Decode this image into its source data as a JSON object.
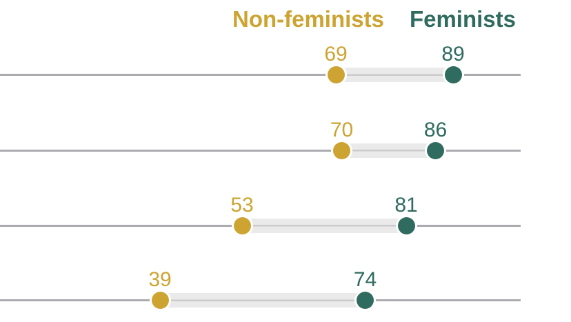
{
  "legend": {
    "non_feminists": "Non-feminists",
    "feminists": "Feminists"
  },
  "colors": {
    "gold": "#cda432",
    "teal": "#2f6b5e",
    "gridline": "#acacb0",
    "bar": "#eaeaea",
    "bar_center_line": "#cbcbce"
  },
  "chart_data": {
    "type": "scatter",
    "variant": "dumbbell",
    "title": "",
    "xlabel": "",
    "ylabel": "",
    "xlim": [
      0,
      100
    ],
    "grid": true,
    "legend_position": "top-right",
    "series": [
      {
        "name": "Non-feminists",
        "color": "#cda432",
        "values": [
          69,
          70,
          53,
          39
        ]
      },
      {
        "name": "Feminists",
        "color": "#2f6b5e",
        "values": [
          89,
          86,
          81,
          74
        ]
      }
    ],
    "rows": [
      {
        "non_feminists": 69,
        "feminists": 89
      },
      {
        "non_feminists": 70,
        "feminists": 86
      },
      {
        "non_feminists": 53,
        "feminists": 81
      },
      {
        "non_feminists": 39,
        "feminists": 74
      }
    ]
  }
}
